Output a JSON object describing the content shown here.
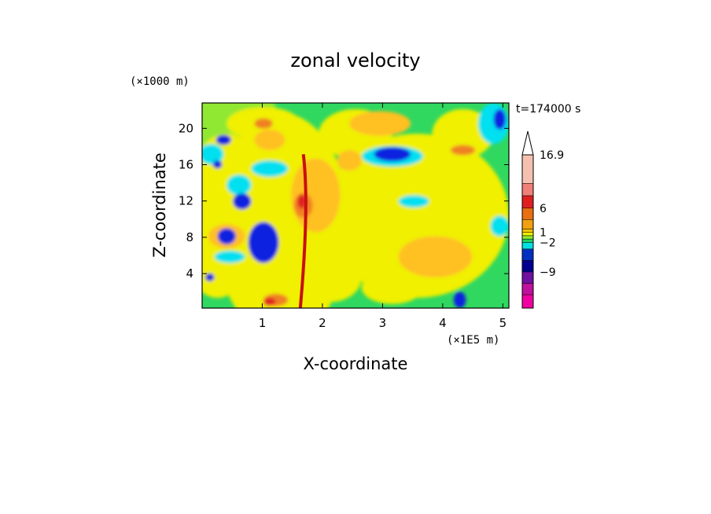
{
  "chart_data": {
    "type": "heatmap",
    "title": "zonal velocity",
    "xlabel": "X-coordinate",
    "ylabel": "Z-coordinate",
    "x_unit": "(×1E5 m)",
    "y_unit": "(×1000 m)",
    "time_label": "t=174000 s",
    "xlim": [
      0,
      5.1
    ],
    "ylim": [
      0.2,
      22.8
    ],
    "x_ticks": [
      "1",
      "2",
      "3",
      "4",
      "5"
    ],
    "x_tick_values": [
      1,
      2,
      3,
      4,
      5
    ],
    "y_ticks": [
      "4",
      "8",
      "12",
      "16",
      "20"
    ],
    "y_tick_values": [
      4,
      8,
      12,
      16,
      20
    ],
    "colorbar": {
      "labels": [
        "16.9",
        "6",
        "1",
        "−2",
        "−9"
      ],
      "label_values": [
        16.9,
        6,
        1,
        -2,
        -9
      ],
      "colors": [
        "#f5c0b0",
        "#f08078",
        "#e02020",
        "#e87010",
        "#f0a010",
        "#f8c800",
        "#f0f000",
        "#90e830",
        "#20d060",
        "#00e0e0",
        "#0030c0",
        "#000090",
        "#7010a0",
        "#c010a0",
        "#f000a0"
      ]
    },
    "palette": {
      "yellow": "#f0f000",
      "green": "#30d860",
      "lightgreen": "#90e830",
      "orange": "#ffc020",
      "darkorange": "#f08020",
      "red": "#e02020",
      "cyan": "#00e0f0",
      "blue": "#1020e0",
      "darkblue": "#000090"
    }
  }
}
